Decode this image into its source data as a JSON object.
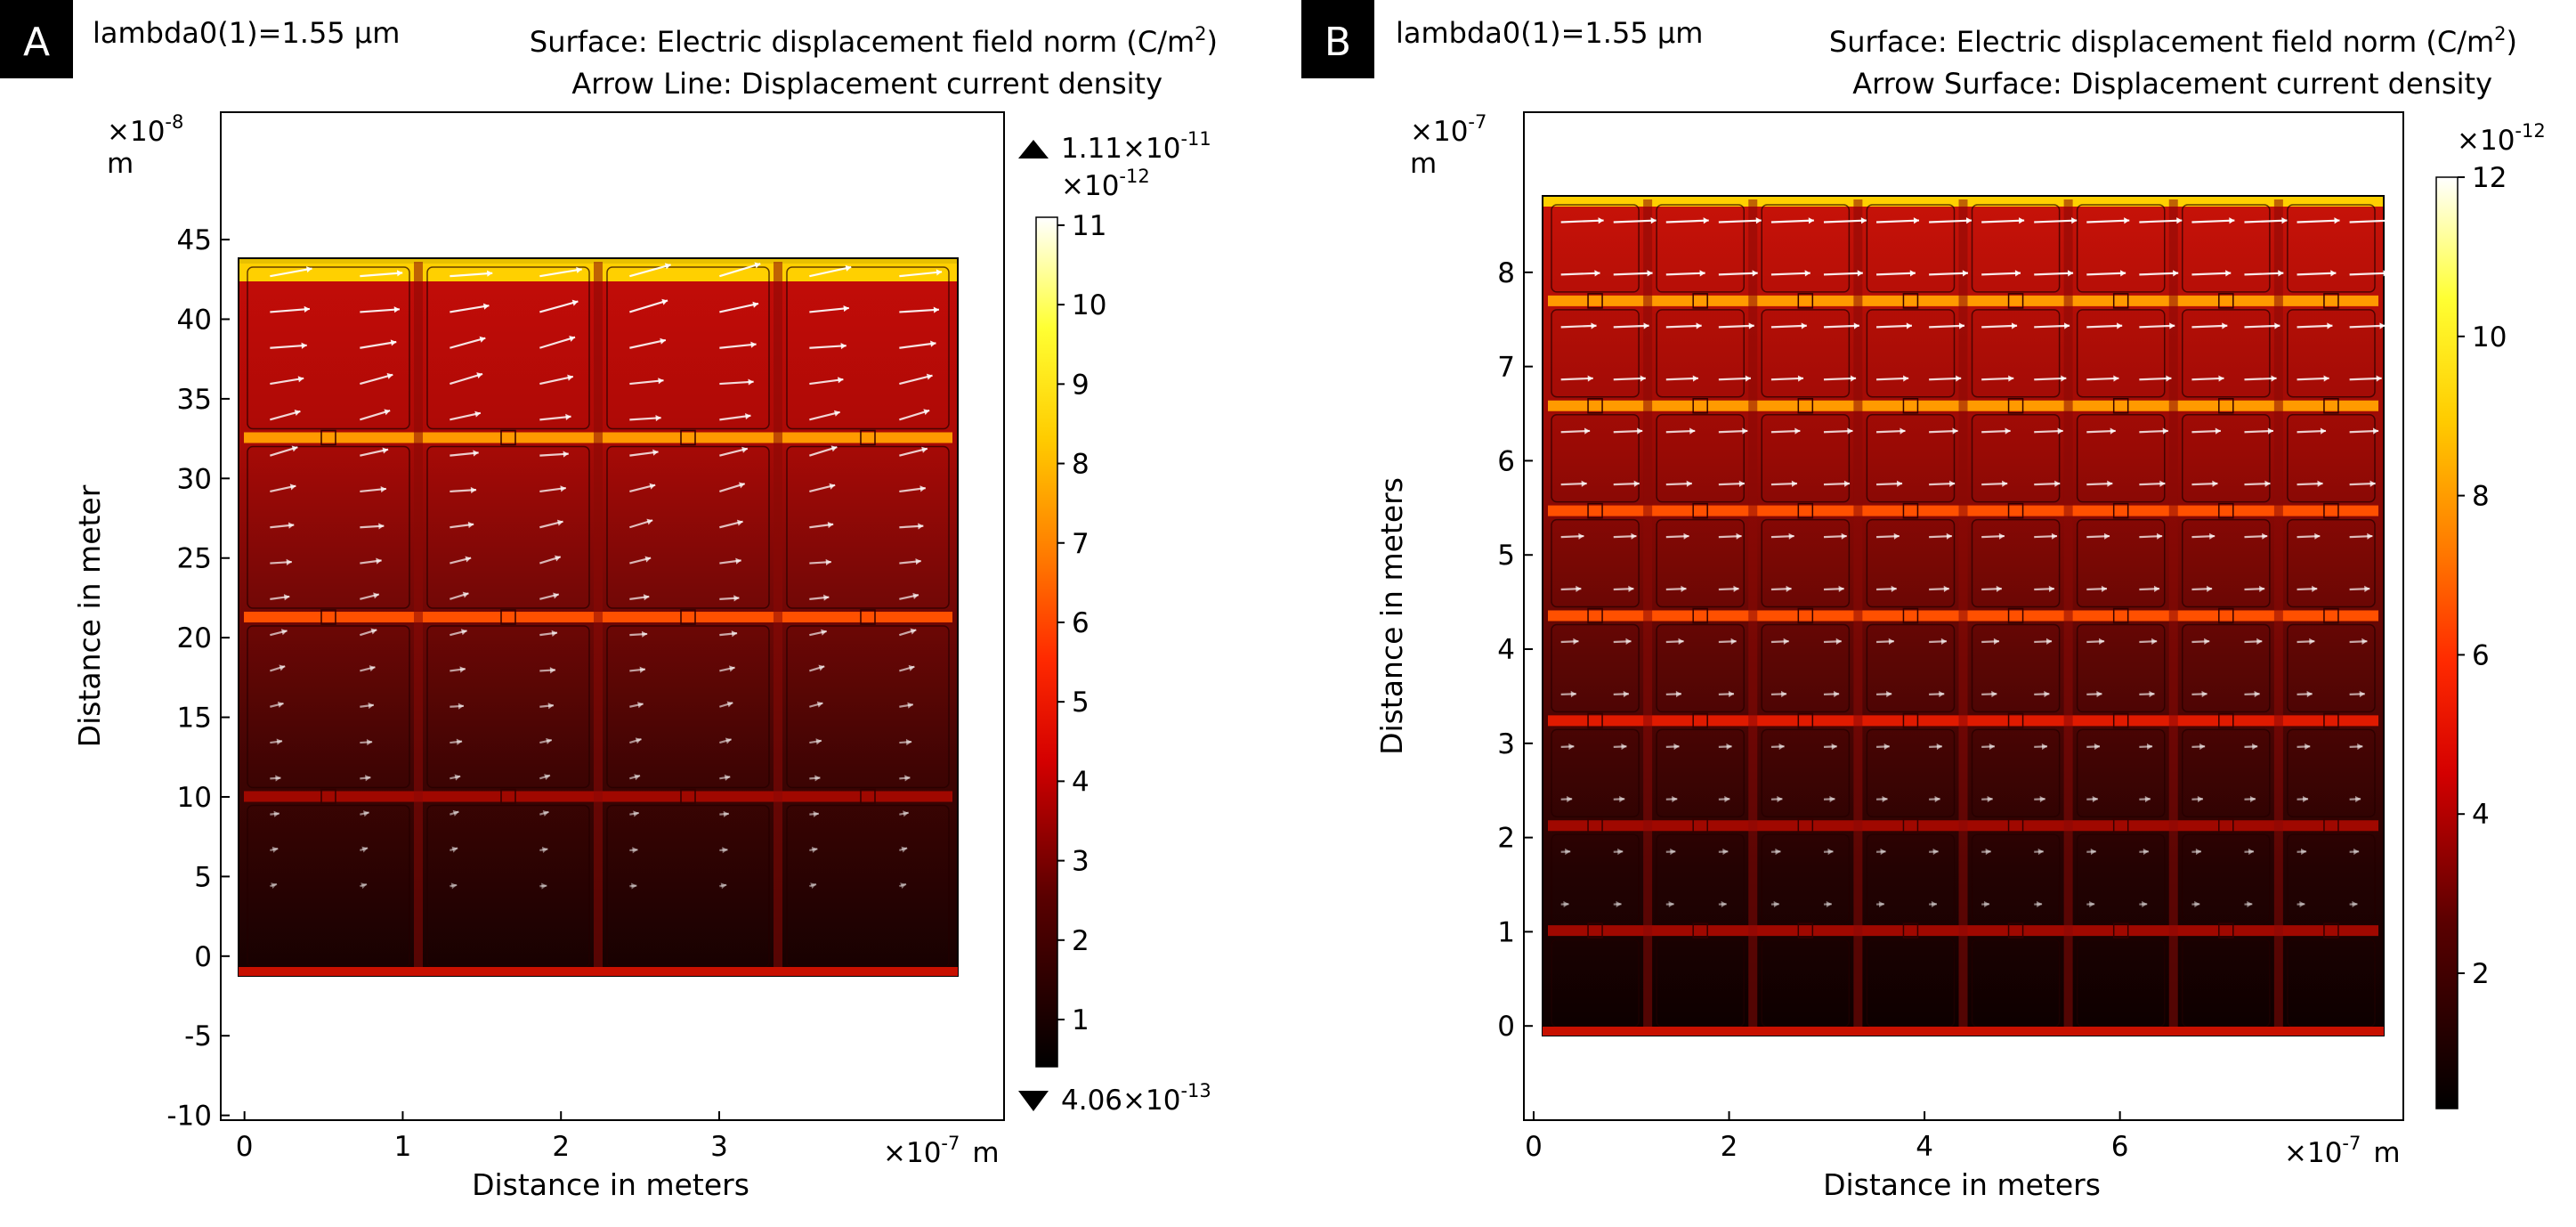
{
  "panels": [
    {
      "id": "A",
      "badge": "A",
      "wavelength": "lambda0(1)=1.55 µm",
      "surface_prefix": "Surface: Electric displacement field norm (C/m",
      "surface_sup": "2",
      "surface_suffix": ")",
      "arrow_title": "Arrow Line: Displacement current density",
      "y_exp_base": "×10",
      "y_exp_pow": "-8",
      "y_unit": "m",
      "ylabel": "Distance in meter",
      "xlabel": "Distance in meters",
      "x_exp_base": "×10",
      "x_exp_pow": "-7",
      "x_unit": "m",
      "max_label_base": "1.11×10",
      "max_label_pow": "-11",
      "min_label_base": "4.06×10",
      "min_label_pow": "-13",
      "cb_exp_base": "×10",
      "cb_exp_pow": "-12",
      "max_marker_icon": "triangle-up-icon",
      "min_marker_icon": "triangle-down-icon"
    },
    {
      "id": "B",
      "badge": "B",
      "wavelength": "lambda0(1)=1.55 µm",
      "surface_prefix": "Surface: Electric displacement field norm (C/m",
      "surface_sup": "2",
      "surface_suffix": ")",
      "arrow_title": "Arrow Surface: Displacement current density",
      "y_exp_base": "×10",
      "y_exp_pow": "-7",
      "y_unit": "m",
      "ylabel": "Distance in meters",
      "xlabel": "Distance in meters",
      "x_exp_base": "×10",
      "x_exp_pow": "-7",
      "x_unit": "m",
      "cb_exp_base": "×10",
      "cb_exp_pow": "-12"
    }
  ],
  "chart_data": [
    {
      "type": "heatmap",
      "panel": "A",
      "title": "Surface: Electric displacement field norm (C/m2) / Arrow Line: Displacement current density",
      "xlabel": "Distance in meters",
      "ylabel": "Distance in meter",
      "x_scale": "×10^-7 m",
      "y_scale": "×10^-8 m",
      "x_ticks": [
        "0",
        "1",
        "2",
        "3"
      ],
      "y_ticks": [
        "-10",
        "-5",
        "0",
        "5",
        "10",
        "15",
        "20",
        "25",
        "30",
        "35",
        "40",
        "45"
      ],
      "xlim": [
        -0.15,
        4.8
      ],
      "ylim": [
        -10.3,
        53
      ],
      "domain": {
        "x": [
          -0.1,
          4.4
        ],
        "y": [
          -1,
          44
        ]
      },
      "grid": {
        "cols": 4,
        "rows": 4
      },
      "colorbar": {
        "colormap": "heat",
        "scale": "×10^-12",
        "ticks": [
          "11",
          "10",
          "9",
          "8",
          "7",
          "6",
          "5",
          "4",
          "3",
          "2",
          "1"
        ],
        "range": [
          0.406,
          11.1
        ],
        "max": "1.11×10^-11",
        "min": "4.06×10^-13"
      },
      "grid_lines": false
    },
    {
      "type": "heatmap",
      "panel": "B",
      "title": "Surface: Electric displacement field norm (C/m2) / Arrow Surface: Displacement current density",
      "xlabel": "Distance in meters",
      "ylabel": "Distance in meters",
      "x_scale": "×10^-7 m",
      "y_scale": "×10^-7 m",
      "x_ticks": [
        "0",
        "2",
        "4",
        "6"
      ],
      "y_ticks": [
        "0",
        "1",
        "2",
        "3",
        "4",
        "5",
        "6",
        "7",
        "8"
      ],
      "xlim": [
        -0.1,
        8.9
      ],
      "ylim": [
        -1,
        9.7
      ],
      "domain": {
        "x": [
          -0.1,
          8.75
        ],
        "y": [
          -0.1,
          8.85
        ]
      },
      "grid": {
        "cols": 8,
        "rows": 8
      },
      "colorbar": {
        "colormap": "heat",
        "scale": "×10^-12",
        "ticks": [
          "12",
          "10",
          "8",
          "6",
          "4",
          "2"
        ],
        "range": [
          0.3,
          12
        ]
      },
      "grid_lines": false
    }
  ],
  "colors": {
    "badge_bg": "#000000",
    "badge_text": "#ffffff",
    "frame": "#000000",
    "arrow": "#ffffff"
  }
}
